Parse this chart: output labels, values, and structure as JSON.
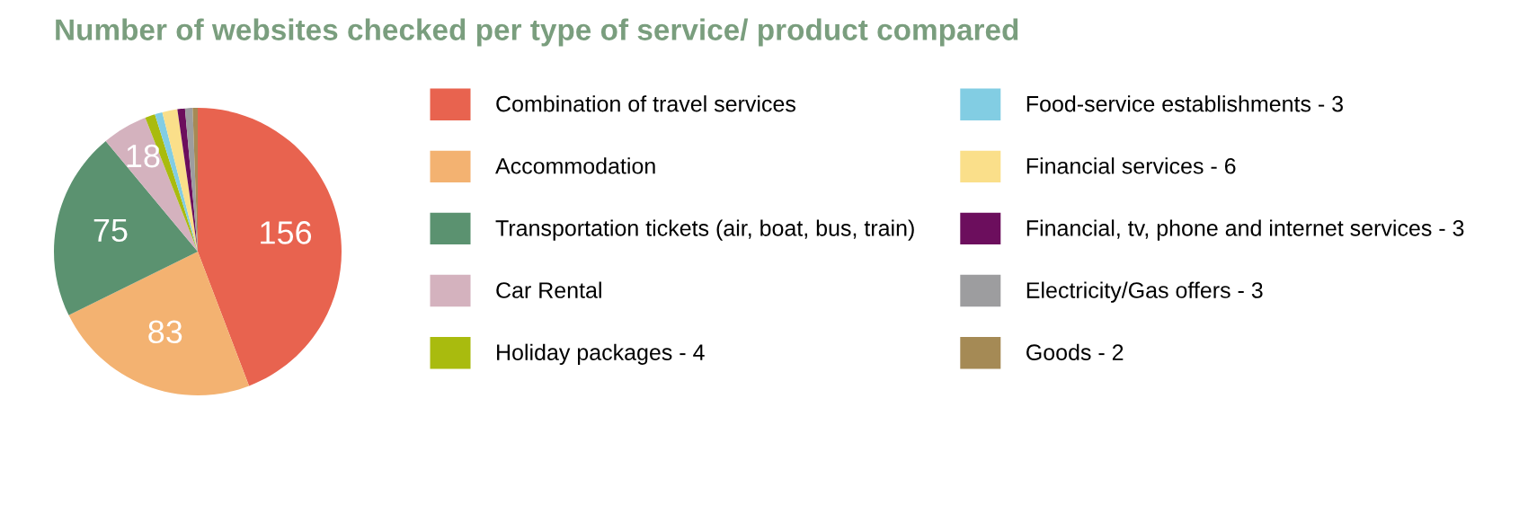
{
  "chart_data": {
    "type": "pie",
    "title": "Number of websites checked per type of service/ product compared",
    "categories": [
      "Combination of travel services",
      "Accommodation",
      "Transportation tickets (air, boat, bus, train)",
      "Car Rental",
      "Holiday packages - 4",
      "Food-service establishments - 3",
      "Financial services - 6",
      "Financial, tv, phone and internet services - 3",
      "Electricity/Gas offers - 3",
      "Goods - 2"
    ],
    "values": [
      156,
      83,
      75,
      18,
      4,
      3,
      6,
      3,
      3,
      2
    ],
    "value_labels": [
      "156",
      "83",
      "75",
      "18",
      null,
      null,
      null,
      null,
      null,
      null
    ],
    "colors": [
      "#e8634f",
      "#f3b271",
      "#5b9270",
      "#d4b2be",
      "#a9bb0e",
      "#82cde3",
      "#fadf8a",
      "#6c0e5d",
      "#9d9d9f",
      "#a58a55"
    ],
    "legend": "right"
  }
}
